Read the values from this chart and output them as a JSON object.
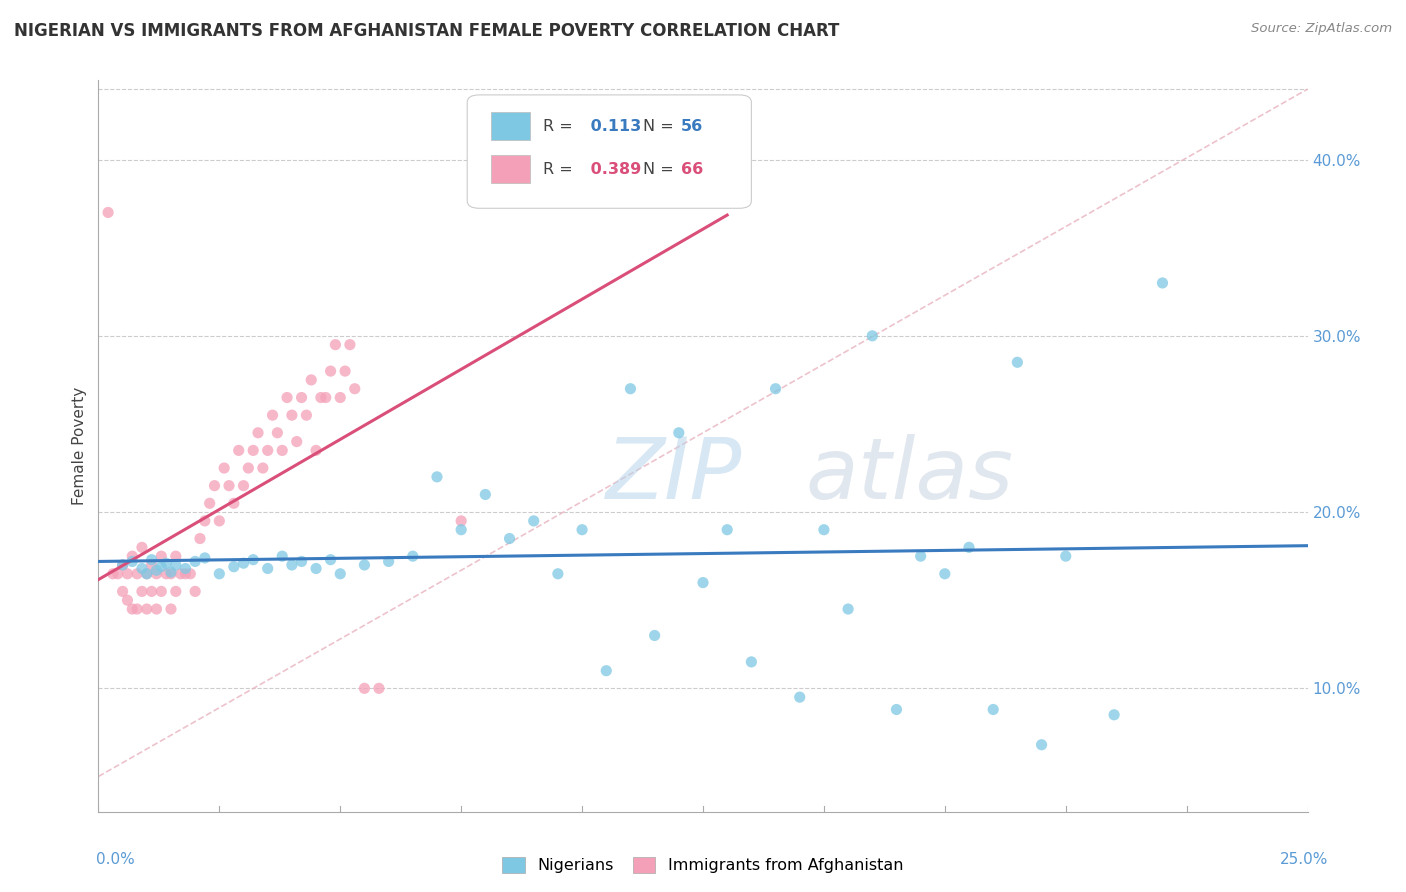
{
  "title": "NIGERIAN VS IMMIGRANTS FROM AFGHANISTAN FEMALE POVERTY CORRELATION CHART",
  "source": "Source: ZipAtlas.com",
  "ylabel": "Female Poverty",
  "y_tick_labels": [
    "10.0%",
    "20.0%",
    "30.0%",
    "40.0%"
  ],
  "y_tick_values": [
    0.1,
    0.2,
    0.3,
    0.4
  ],
  "xmin": 0.0,
  "xmax": 0.25,
  "ymin": 0.03,
  "ymax": 0.445,
  "blue_R": 0.113,
  "blue_N": 56,
  "pink_R": 0.389,
  "pink_N": 66,
  "blue_color": "#7ec8e3",
  "pink_color": "#f4a0b8",
  "blue_darker": "#3a7bbf",
  "pink_darker": "#d94f7a",
  "blue_label": "Nigerians",
  "pink_label": "Immigrants from Afghanistan",
  "watermark_zip": "ZIP",
  "watermark_atlas": "atlas",
  "diag_color": "#e8b4c0",
  "blue_scatter_x": [
    0.005,
    0.007,
    0.009,
    0.01,
    0.011,
    0.012,
    0.013,
    0.014,
    0.015,
    0.016,
    0.018,
    0.02,
    0.022,
    0.025,
    0.028,
    0.03,
    0.032,
    0.035,
    0.038,
    0.04,
    0.042,
    0.045,
    0.048,
    0.05,
    0.055,
    0.06,
    0.065,
    0.07,
    0.075,
    0.08,
    0.085,
    0.09,
    0.095,
    0.1,
    0.11,
    0.12,
    0.13,
    0.14,
    0.15,
    0.16,
    0.17,
    0.18,
    0.19,
    0.2,
    0.21,
    0.22,
    0.105,
    0.115,
    0.125,
    0.135,
    0.145,
    0.155,
    0.165,
    0.175,
    0.185,
    0.195
  ],
  "blue_scatter_y": [
    0.17,
    0.172,
    0.168,
    0.165,
    0.173,
    0.167,
    0.169,
    0.171,
    0.166,
    0.17,
    0.168,
    0.172,
    0.174,
    0.165,
    0.169,
    0.171,
    0.173,
    0.168,
    0.175,
    0.17,
    0.172,
    0.168,
    0.173,
    0.165,
    0.17,
    0.172,
    0.175,
    0.22,
    0.19,
    0.21,
    0.185,
    0.195,
    0.165,
    0.19,
    0.27,
    0.245,
    0.19,
    0.27,
    0.19,
    0.3,
    0.175,
    0.18,
    0.285,
    0.175,
    0.085,
    0.33,
    0.11,
    0.13,
    0.16,
    0.115,
    0.095,
    0.145,
    0.088,
    0.165,
    0.088,
    0.068
  ],
  "pink_scatter_x": [
    0.002,
    0.003,
    0.004,
    0.005,
    0.005,
    0.006,
    0.006,
    0.007,
    0.007,
    0.008,
    0.008,
    0.009,
    0.009,
    0.01,
    0.01,
    0.011,
    0.011,
    0.012,
    0.012,
    0.013,
    0.013,
    0.014,
    0.015,
    0.015,
    0.016,
    0.016,
    0.017,
    0.018,
    0.019,
    0.02,
    0.021,
    0.022,
    0.023,
    0.024,
    0.025,
    0.026,
    0.027,
    0.028,
    0.029,
    0.03,
    0.031,
    0.032,
    0.033,
    0.034,
    0.035,
    0.036,
    0.037,
    0.038,
    0.039,
    0.04,
    0.041,
    0.042,
    0.043,
    0.044,
    0.045,
    0.046,
    0.047,
    0.048,
    0.049,
    0.05,
    0.051,
    0.052,
    0.053,
    0.055,
    0.058,
    0.075
  ],
  "pink_scatter_y": [
    0.37,
    0.165,
    0.165,
    0.155,
    0.17,
    0.15,
    0.165,
    0.145,
    0.175,
    0.145,
    0.165,
    0.155,
    0.18,
    0.145,
    0.165,
    0.155,
    0.17,
    0.145,
    0.165,
    0.155,
    0.175,
    0.165,
    0.145,
    0.165,
    0.155,
    0.175,
    0.165,
    0.165,
    0.165,
    0.155,
    0.185,
    0.195,
    0.205,
    0.215,
    0.195,
    0.225,
    0.215,
    0.205,
    0.235,
    0.215,
    0.225,
    0.235,
    0.245,
    0.225,
    0.235,
    0.255,
    0.245,
    0.235,
    0.265,
    0.255,
    0.24,
    0.265,
    0.255,
    0.275,
    0.235,
    0.265,
    0.265,
    0.28,
    0.295,
    0.265,
    0.28,
    0.295,
    0.27,
    0.1,
    0.1,
    0.195
  ]
}
